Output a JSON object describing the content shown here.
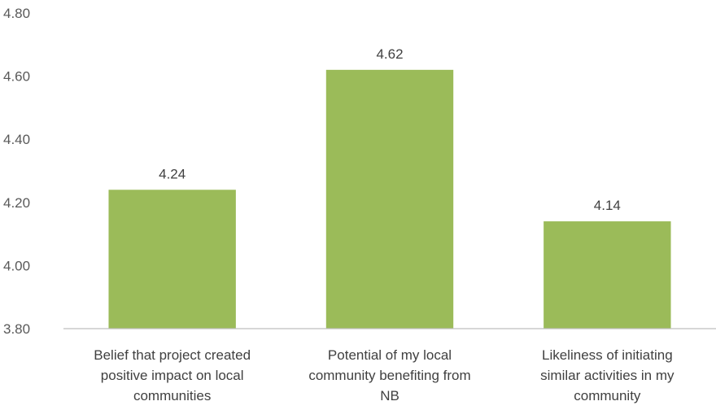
{
  "chart_data": {
    "type": "bar",
    "categories": [
      [
        "Belief that project created",
        "positive impact on local",
        "communities"
      ],
      [
        "Potential of my local",
        "community benefiting from",
        "NB"
      ],
      [
        "Likeliness of initiating",
        "similar activities in my",
        "community"
      ]
    ],
    "values": [
      4.24,
      4.62,
      4.14
    ],
    "data_labels": [
      "4.24",
      "4.62",
      "4.14"
    ],
    "ylim": [
      3.8,
      4.8
    ],
    "yticks": [
      "3.80",
      "4.00",
      "4.20",
      "4.40",
      "4.60",
      "4.80"
    ],
    "ytick_values": [
      3.8,
      4.0,
      4.2,
      4.4,
      4.6,
      4.8
    ],
    "grid": false,
    "legend": "none",
    "bar_color": "#9bbb59",
    "axis_color": "#bfbfbf"
  }
}
